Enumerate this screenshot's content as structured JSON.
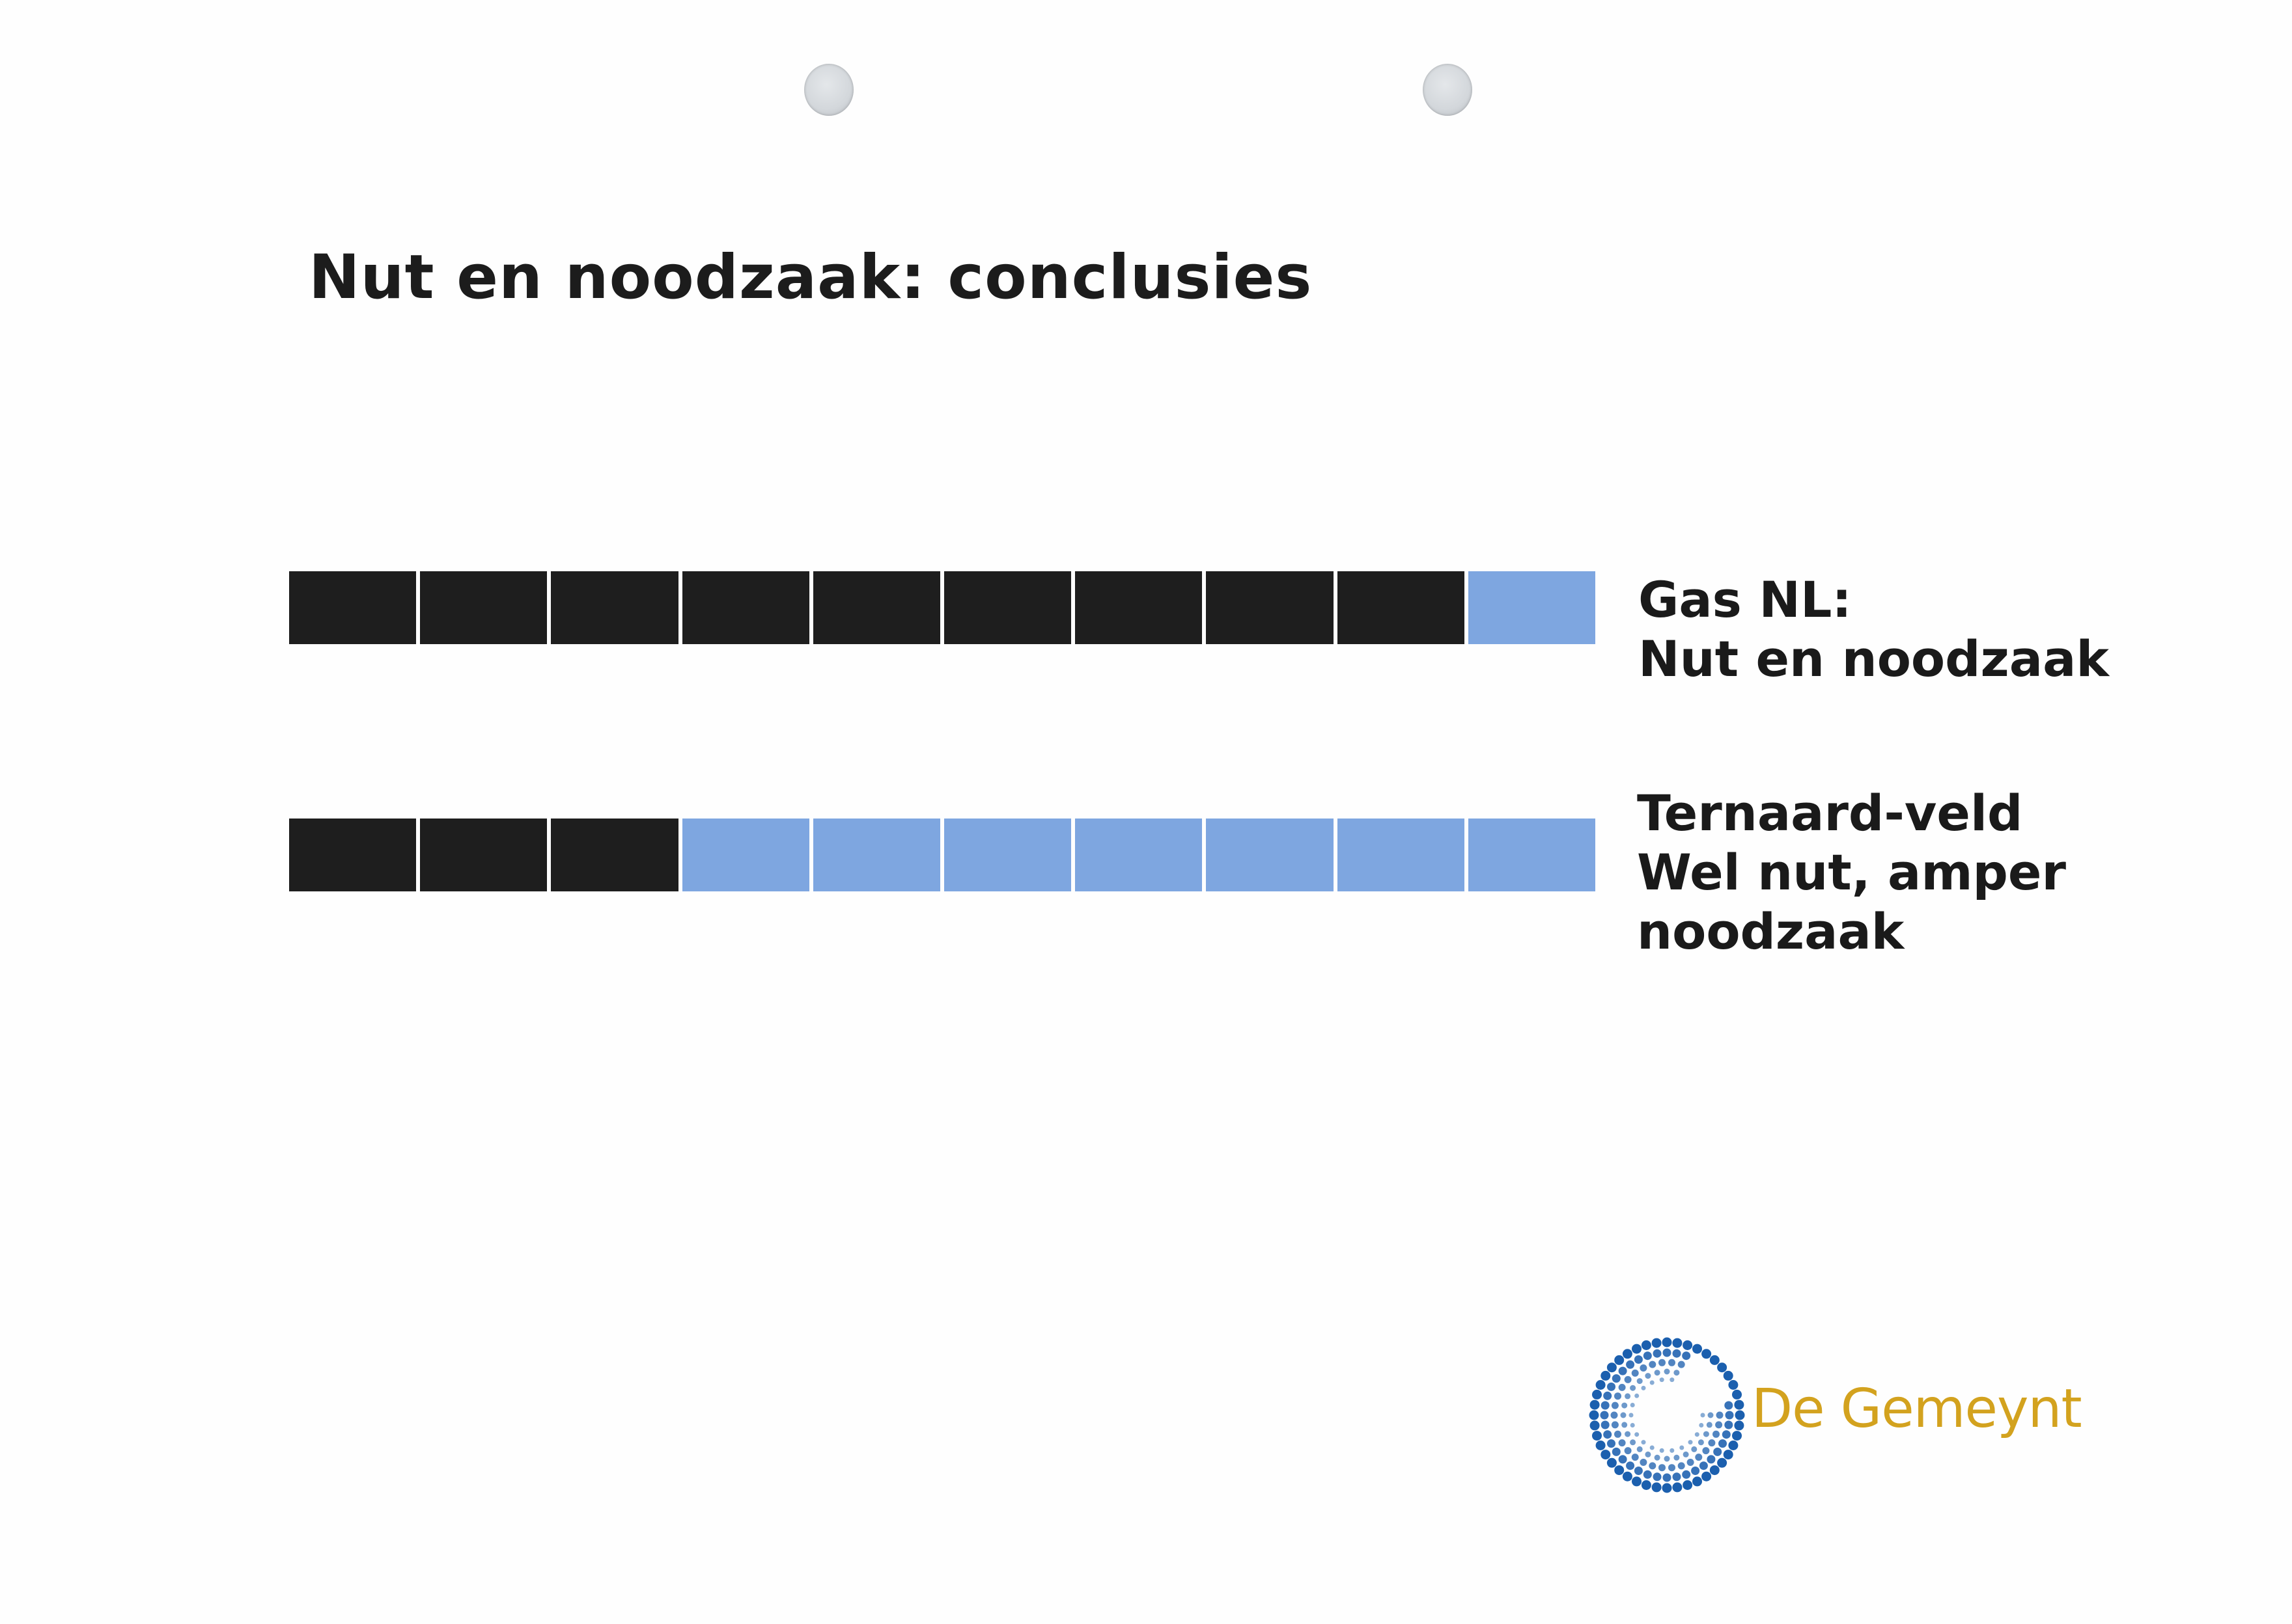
{
  "slide": {
    "title": "Nut en noodzaak: conclusies"
  },
  "colors": {
    "filled": "#1e1e1e",
    "empty": "#7ea6e0",
    "logo_blue": "#1b5fae",
    "logo_gold": "#d3a21e"
  },
  "ratings": [
    {
      "segments_total": 10,
      "segments_filled": 9,
      "label_lines": [
        "Gas NL:",
        "Nut en noodzaak"
      ]
    },
    {
      "segments_total": 10,
      "segments_filled": 3,
      "label_lines": [
        "Ternaard-veld",
        "Wel nut, amper",
        "noodzaak"
      ]
    }
  ],
  "logo": {
    "text": "De Gemeynt"
  }
}
